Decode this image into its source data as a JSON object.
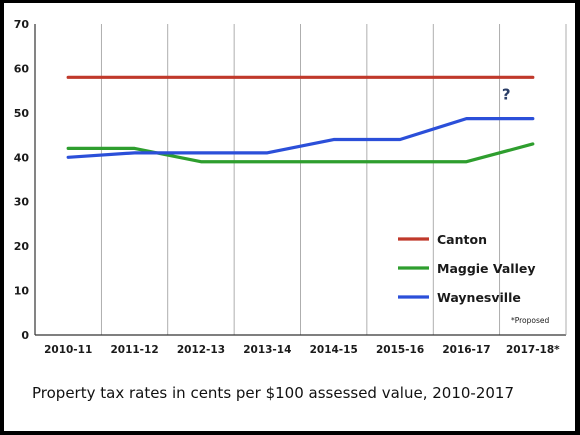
{
  "chart_data": {
    "type": "line",
    "title": "",
    "xlabel": "",
    "ylabel": "",
    "categories": [
      "2010-11",
      "2011-12",
      "2012-13",
      "2013-14",
      "2014-15",
      "2015-16",
      "2016-17",
      "2017-18*"
    ],
    "ylim": [
      0,
      70
    ],
    "yticks": [
      0,
      10,
      20,
      30,
      40,
      50,
      60,
      70
    ],
    "grid": "vertical",
    "legend_position": "bottom-right",
    "series": [
      {
        "name": "Canton",
        "color": "#c0392b",
        "values": [
          58,
          58,
          58,
          58,
          58,
          58,
          58,
          58
        ]
      },
      {
        "name": "Maggie Valley",
        "color": "#2e9e2e",
        "values": [
          42,
          42,
          39,
          39,
          39,
          39,
          39,
          43
        ]
      },
      {
        "name": "Waynesville",
        "color": "#2b4fd9",
        "values": [
          40,
          41,
          41,
          41,
          44,
          44,
          48.7,
          48.7
        ]
      }
    ],
    "annotation": {
      "text": "?",
      "category_index": 6.6,
      "value": 53
    },
    "footnote": "*Proposed"
  },
  "caption": "Property tax rates in cents per $100 assessed value, 2010-2017"
}
